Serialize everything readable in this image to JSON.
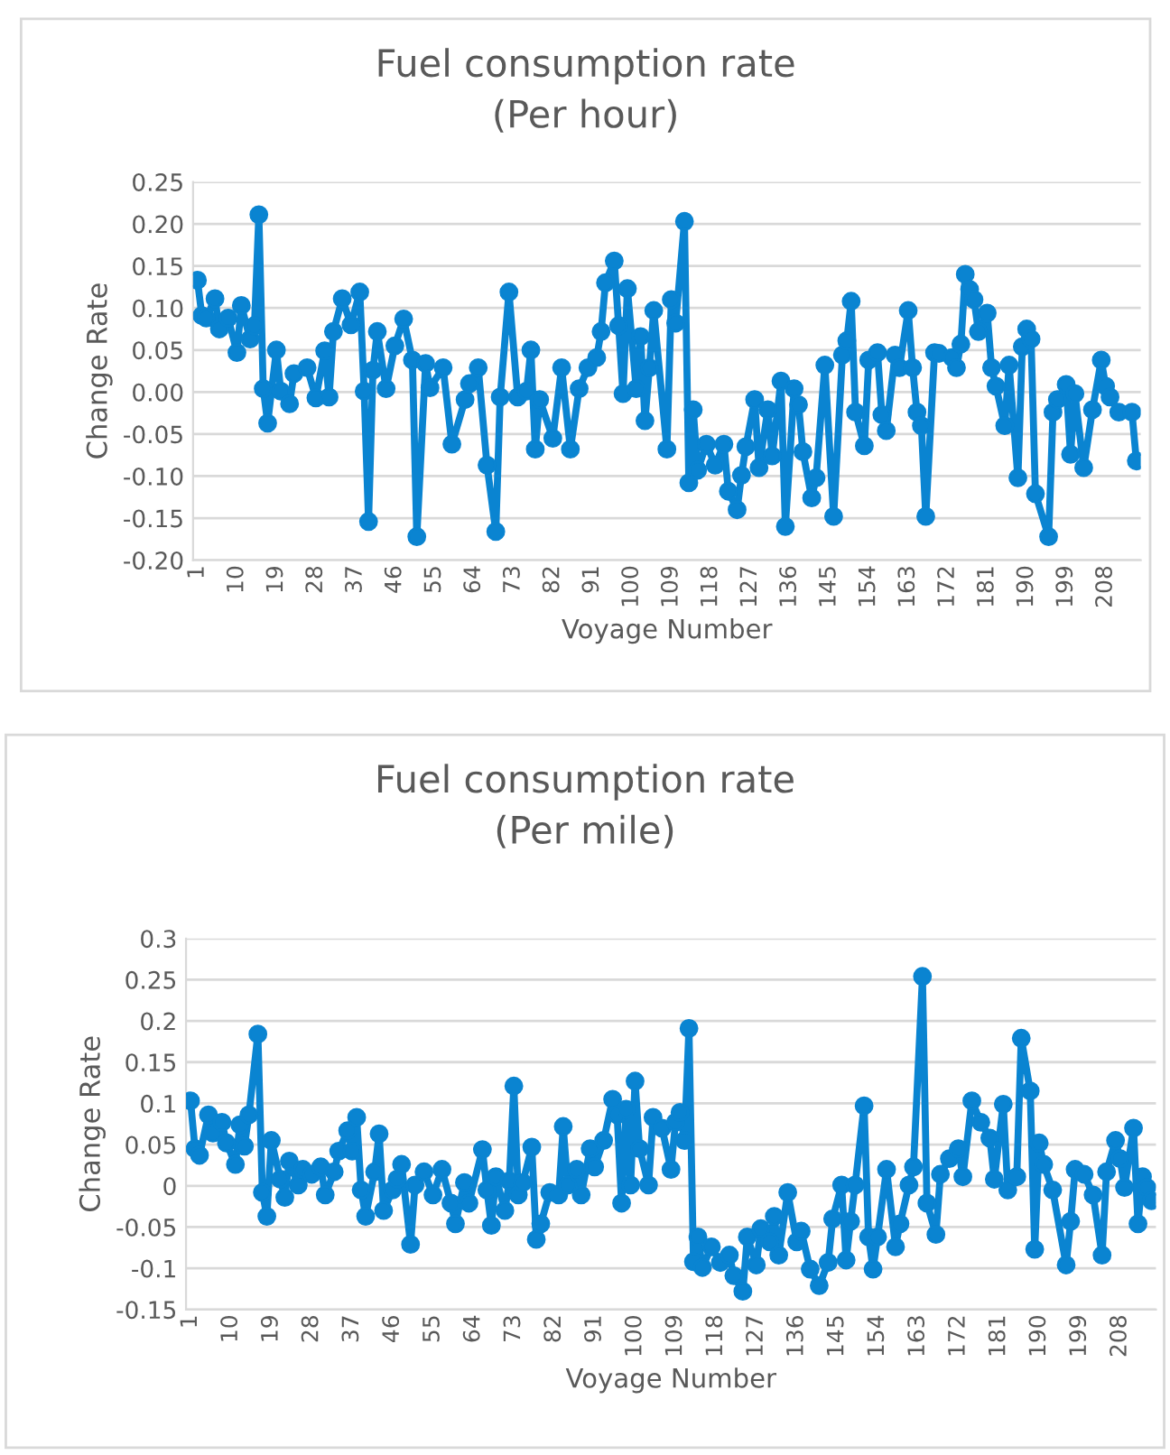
{
  "chart_data": [
    {
      "type": "line",
      "title": "Fuel consumption rate",
      "subtitle": "(Per hour)",
      "xlabel": "Voyage Number",
      "ylabel": "Change Rate",
      "color": "#0a84d1",
      "marker": "circle",
      "grid": "y",
      "x": [
        1,
        2,
        3,
        5,
        6,
        8,
        10,
        11,
        13,
        14,
        15,
        16,
        17,
        19,
        20,
        22,
        23,
        26,
        28,
        30,
        31,
        32,
        34,
        36,
        38,
        39,
        40,
        41,
        42,
        44,
        46,
        48,
        50,
        51,
        53,
        54,
        57,
        59,
        62,
        63,
        65,
        67,
        69,
        70,
        72,
        74,
        76,
        77,
        78,
        79,
        82,
        84,
        86,
        88,
        90,
        92,
        93,
        94,
        96,
        97,
        98,
        99,
        101,
        102,
        103,
        104,
        105,
        108,
        109,
        110,
        112,
        113,
        114,
        115,
        117,
        119,
        121,
        122,
        124,
        125,
        126,
        128,
        129,
        131,
        132,
        134,
        135,
        137,
        138,
        139,
        141,
        142,
        144,
        146,
        148,
        149,
        150,
        151,
        153,
        154,
        156,
        157,
        158,
        160,
        161,
        163,
        164,
        165,
        166,
        167,
        169,
        170,
        173,
        174,
        175,
        176,
        177,
        178,
        179,
        181,
        182,
        183,
        185,
        186,
        188,
        189,
        190,
        191,
        192,
        195,
        196,
        197,
        199,
        200,
        201,
        203,
        205,
        207,
        208,
        209,
        211,
        214,
        215
      ],
      "values": [
        0.133,
        0.091,
        0.088,
        0.111,
        0.075,
        0.088,
        0.047,
        0.103,
        0.063,
        0.079,
        0.211,
        0.004,
        -0.037,
        0.05,
        0.001,
        -0.014,
        0.022,
        0.029,
        -0.007,
        0.049,
        -0.006,
        0.072,
        0.111,
        0.08,
        0.119,
        0.001,
        -0.154,
        0.026,
        0.072,
        0.004,
        0.055,
        0.087,
        0.038,
        -0.172,
        0.034,
        0.005,
        0.029,
        -0.062,
        -0.009,
        0.01,
        0.029,
        -0.087,
        -0.166,
        -0.006,
        0.119,
        -0.006,
        0.001,
        0.05,
        -0.068,
        -0.009,
        -0.055,
        0.029,
        -0.068,
        0.004,
        0.029,
        0.041,
        0.072,
        0.13,
        0.156,
        0.079,
        -0.002,
        0.123,
        0.004,
        0.066,
        -0.034,
        0.029,
        0.097,
        -0.068,
        0.11,
        0.082,
        0.203,
        -0.108,
        -0.021,
        -0.093,
        -0.062,
        -0.087,
        -0.062,
        -0.118,
        -0.14,
        -0.099,
        -0.065,
        -0.009,
        -0.09,
        -0.021,
        -0.076,
        0.013,
        -0.16,
        0.004,
        -0.015,
        -0.071,
        -0.126,
        -0.102,
        0.032,
        -0.148,
        0.044,
        0.061,
        0.108,
        -0.024,
        -0.064,
        0.038,
        0.047,
        -0.027,
        -0.046,
        0.044,
        0.029,
        0.097,
        0.029,
        -0.024,
        -0.04,
        -0.148,
        0.047,
        0.046,
        0.041,
        0.029,
        0.057,
        0.14,
        0.122,
        0.11,
        0.072,
        0.094,
        0.029,
        0.007,
        -0.04,
        0.032,
        -0.102,
        0.054,
        0.075,
        0.063,
        -0.121,
        -0.172,
        -0.024,
        -0.009,
        0.009,
        -0.074,
        -0.002,
        -0.09,
        -0.021,
        0.038,
        0.007,
        -0.006,
        -0.024,
        -0.024,
        -0.082
      ],
      "xlim": [
        0,
        216
      ],
      "xticks": [
        1,
        10,
        19,
        28,
        37,
        46,
        55,
        64,
        73,
        82,
        91,
        100,
        109,
        118,
        127,
        136,
        145,
        154,
        163,
        172,
        181,
        190,
        199,
        208
      ],
      "ylim": [
        -0.2,
        0.25
      ],
      "yticks": [
        0.25,
        {
          "value": 0.2,
          "label": "0.20"
        },
        0.15,
        {
          "value": 0.1,
          "label": "0.10"
        },
        0.05,
        {
          "value": 0,
          "label": "0.00"
        },
        -0.05,
        {
          "value": -0.1,
          "label": "-0.10"
        },
        -0.15,
        {
          "value": -0.2,
          "label": "-0.20"
        }
      ]
    },
    {
      "type": "line",
      "title": "Fuel consumption rate",
      "subtitle": "(Per mile)",
      "xlabel": "Voyage Number",
      "ylabel": "Change Rate",
      "color": "#0a84d1",
      "marker": "circle",
      "grid": "y",
      "x": [
        1,
        2,
        3,
        5,
        6,
        8,
        9,
        11,
        12,
        13,
        14,
        16,
        17,
        18,
        19,
        21,
        22,
        23,
        25,
        26,
        28,
        30,
        31,
        33,
        34,
        36,
        37,
        38,
        39,
        40,
        42,
        43,
        44,
        46,
        47,
        48,
        50,
        51,
        53,
        55,
        57,
        59,
        60,
        62,
        63,
        66,
        67,
        68,
        69,
        71,
        72,
        73,
        74,
        75,
        77,
        78,
        79,
        81,
        83,
        84,
        85,
        87,
        88,
        90,
        91,
        93,
        95,
        96,
        97,
        98,
        99,
        100,
        101,
        103,
        104,
        106,
        108,
        109,
        110,
        111,
        112,
        113,
        114,
        115,
        117,
        119,
        121,
        122,
        124,
        125,
        127,
        128,
        130,
        131,
        132,
        134,
        136,
        137,
        139,
        141,
        143,
        144,
        146,
        147,
        148,
        149,
        151,
        152,
        153,
        154,
        156,
        158,
        159,
        161,
        162,
        164,
        165,
        167,
        168,
        170,
        172,
        173,
        175,
        177,
        179,
        180,
        182,
        183,
        185,
        186,
        188,
        189,
        190,
        191,
        193,
        196,
        197,
        198,
        200,
        202,
        204,
        205,
        207,
        208,
        209,
        211,
        212,
        213,
        214,
        215
      ],
      "values": [
        0.103,
        0.045,
        0.037,
        0.086,
        0.064,
        0.077,
        0.052,
        0.026,
        0.074,
        0.048,
        0.086,
        0.184,
        -0.008,
        -0.037,
        0.055,
        0.008,
        -0.014,
        0.03,
        0.001,
        0.02,
        0.014,
        0.023,
        -0.011,
        0.017,
        0.042,
        0.067,
        0.042,
        0.083,
        -0.005,
        -0.037,
        0.017,
        0.063,
        -0.03,
        -0.005,
        0.008,
        0.026,
        -0.071,
        0.001,
        0.017,
        -0.011,
        0.02,
        -0.021,
        -0.046,
        0.004,
        -0.021,
        0.044,
        -0.005,
        -0.048,
        0.011,
        -0.03,
        0.006,
        0.121,
        -0.011,
        0.004,
        0.047,
        -0.065,
        -0.046,
        -0.008,
        -0.011,
        0.072,
        0.001,
        0.02,
        -0.011,
        0.045,
        0.023,
        0.055,
        0.105,
        0.086,
        -0.021,
        0.093,
        0.001,
        0.127,
        0.045,
        0.001,
        0.083,
        0.07,
        0.02,
        0.077,
        0.089,
        0.055,
        0.191,
        -0.092,
        -0.062,
        -0.099,
        -0.074,
        -0.093,
        -0.084,
        -0.109,
        -0.128,
        -0.062,
        -0.096,
        -0.052,
        -0.068,
        -0.037,
        -0.084,
        -0.008,
        -0.068,
        -0.055,
        -0.101,
        -0.121,
        -0.093,
        -0.04,
        0.001,
        -0.09,
        -0.043,
        0.001,
        0.097,
        -0.062,
        -0.101,
        -0.062,
        0.02,
        -0.074,
        -0.046,
        0.001,
        0.023,
        0.254,
        -0.021,
        -0.059,
        0.014,
        0.033,
        0.045,
        0.011,
        0.103,
        0.077,
        0.058,
        0.008,
        0.099,
        -0.005,
        0.011,
        0.179,
        0.115,
        -0.077,
        0.052,
        0.026,
        -0.005,
        -0.096,
        -0.043,
        0.02,
        0.014,
        -0.011,
        -0.084,
        0.017,
        0.055,
        0.033,
        -0.002,
        0.07,
        -0.046,
        0.011,
        -0.002,
        -0.018
      ],
      "xlim": [
        0,
        216
      ],
      "xticks": [
        1,
        10,
        19,
        28,
        37,
        46,
        55,
        64,
        73,
        82,
        91,
        100,
        109,
        118,
        127,
        136,
        145,
        154,
        163,
        172,
        181,
        190,
        199,
        208
      ],
      "ylim": [
        -0.15,
        0.3
      ],
      "yticks": [
        0.3,
        0.25,
        0.2,
        0.15,
        0.1,
        0.05,
        0,
        -0.05,
        -0.1,
        -0.15
      ]
    }
  ]
}
